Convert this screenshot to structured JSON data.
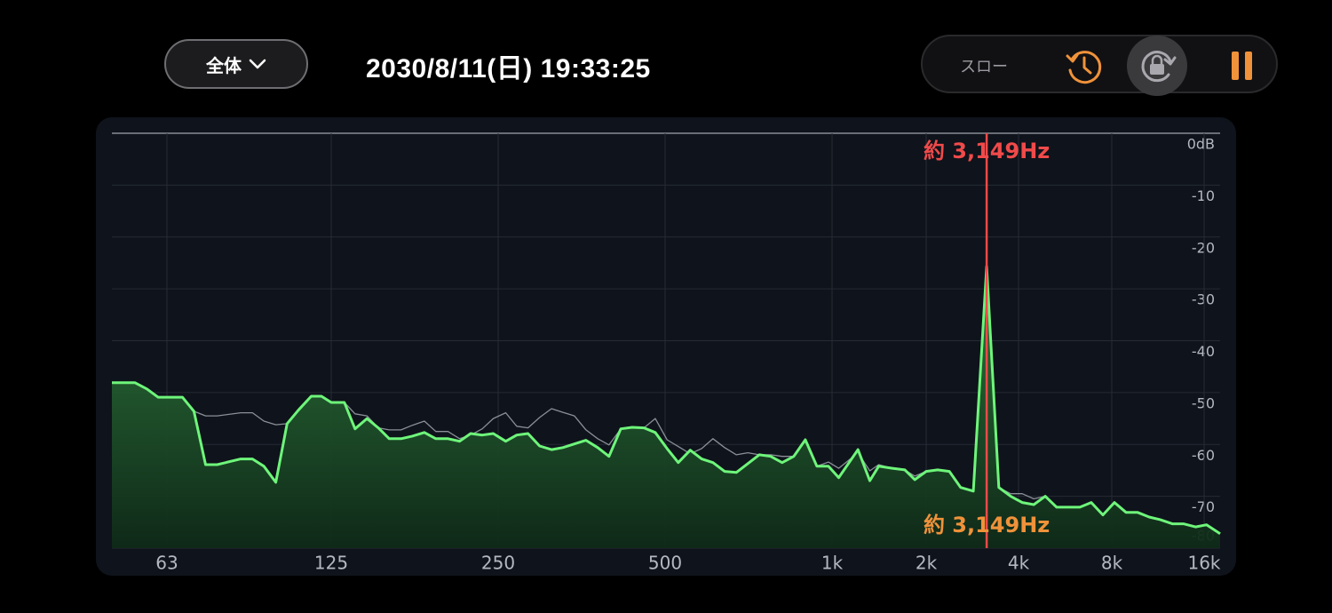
{
  "header": {
    "dropdown": "全体",
    "datetime": "2030/8/11(日) 19:33:25"
  },
  "controls": {
    "speed": "スロー"
  },
  "chart_data": {
    "type": "line",
    "x": [
      50.0,
      55.1,
      57.9,
      60.7,
      67.2,
      70.5,
      74.0,
      77.7,
      85.7,
      90.0,
      94.4,
      99.2,
      104,
      109,
      115,
      120,
      125,
      132,
      138,
      145,
      152,
      159,
      167,
      175,
      184,
      193,
      203,
      213,
      223,
      234,
      245,
      258,
      270,
      283,
      297,
      312,
      327,
      343,
      360,
      378,
      396,
      416,
      436,
      458,
      480,
      504,
      528,
      555,
      582,
      610,
      640,
      672,
      705,
      739,
      775,
      813,
      853,
      895,
      939,
      985,
      1050,
      1210,
      1320,
      1410,
      1560,
      1710,
      1840,
      2000,
      2180,
      2380,
      2590,
      2850,
      3149,
      3450,
      3770,
      4110,
      4480,
      4880,
      5310,
      5790,
      6310,
      6870,
      7490,
      8160,
      8900,
      9700,
      10600,
      11500,
      12600,
      13700,
      15000,
      16300,
      18000
    ],
    "series": [
      {
        "color": "#8a8f98",
        "values": [
          -48.1,
          -48.1,
          -49.3,
          -50.9,
          -50.9,
          -53.6,
          -54.5,
          -54.5,
          -53.9,
          -53.9,
          -55.5,
          -56.2,
          -56.0,
          -53.4,
          -50.7,
          -50.7,
          -51.9,
          -51.9,
          -54.1,
          -54.5,
          -56.8,
          -57.2,
          -57.2,
          -56.3,
          -55.5,
          -57.5,
          -57.5,
          -58.9,
          -58.2,
          -57.0,
          -55.0,
          -53.9,
          -56.5,
          -56.8,
          -54.8,
          -53.1,
          -53.8,
          -54.5,
          -57.2,
          -58.9,
          -60.1,
          -57.0,
          -56.7,
          -56.8,
          -55.0,
          -59.1,
          -60.4,
          -61.8,
          -60.8,
          -58.9,
          -60.6,
          -62.0,
          -61.6,
          -62.0,
          -62.0,
          -62.3,
          -62.3,
          -59.1,
          -64.2,
          -63.4,
          -64.6,
          -61.6,
          -65.1,
          -63.9,
          -64.6,
          -64.9,
          -66.1,
          -65.2,
          -64.9,
          -65.2,
          -68.3,
          -69.0,
          -25.7,
          -68.3,
          -69.5,
          -69.5,
          -70.5,
          -70.0,
          -72.1,
          -72.1,
          -72.1,
          -71.2,
          -73.6,
          -71.2,
          -73.1,
          -73.1,
          -74.0,
          -74.5,
          -75.3,
          -75.3,
          -75.9,
          -75.5,
          -77.2
        ]
      },
      {
        "color": "#6ef57a",
        "values": [
          -48.1,
          -48.1,
          -49.3,
          -50.9,
          -50.9,
          -53.6,
          -63.9,
          -63.9,
          -62.8,
          -62.8,
          -64.2,
          -67.3,
          -56.0,
          -53.4,
          -50.7,
          -50.7,
          -51.9,
          -51.9,
          -57.0,
          -55.0,
          -56.8,
          -58.9,
          -58.9,
          -58.4,
          -57.7,
          -58.9,
          -58.9,
          -59.4,
          -57.9,
          -58.2,
          -57.9,
          -59.4,
          -58.2,
          -57.9,
          -60.3,
          -61.0,
          -60.6,
          -59.9,
          -59.2,
          -60.6,
          -62.3,
          -57.0,
          -56.7,
          -56.8,
          -57.7,
          -60.8,
          -63.5,
          -61.1,
          -62.8,
          -63.5,
          -65.2,
          -65.4,
          -63.7,
          -62.0,
          -62.3,
          -63.5,
          -62.3,
          -59.1,
          -64.2,
          -64.2,
          -66.4,
          -61.0,
          -67.0,
          -64.2,
          -64.6,
          -64.9,
          -66.8,
          -65.2,
          -64.9,
          -65.2,
          -68.3,
          -69.0,
          -25.7,
          -68.3,
          -70.0,
          -71.2,
          -71.6,
          -70.0,
          -72.1,
          -72.1,
          -72.1,
          -71.2,
          -73.6,
          -71.2,
          -73.1,
          -73.1,
          -74.0,
          -74.5,
          -75.3,
          -75.3,
          -75.9,
          -75.5,
          -77.2
        ],
        "fill": true
      }
    ],
    "xlim": [
      50,
      18000
    ],
    "log_x": true,
    "xticks": [
      63,
      125,
      250,
      500,
      {
        "value": 1000,
        "label": "1k"
      },
      {
        "value": 2000,
        "label": "2k"
      },
      {
        "value": 4000,
        "label": "4k"
      },
      {
        "value": 8000,
        "label": "8k"
      },
      {
        "value": 16000,
        "label": "16k"
      }
    ],
    "ylim": [
      -80,
      0
    ],
    "yticks": [
      {
        "value": 0,
        "label": "0dB"
      },
      -10,
      -20,
      -30,
      -40,
      -50,
      -60,
      -70,
      -80
    ],
    "grid": true,
    "marker": {
      "value": 3149,
      "label": "約 3,149Hz",
      "color": "#f04a4a"
    },
    "peak_annotation": {
      "label": "約 3,149Hz",
      "color": "#f0923a"
    }
  }
}
